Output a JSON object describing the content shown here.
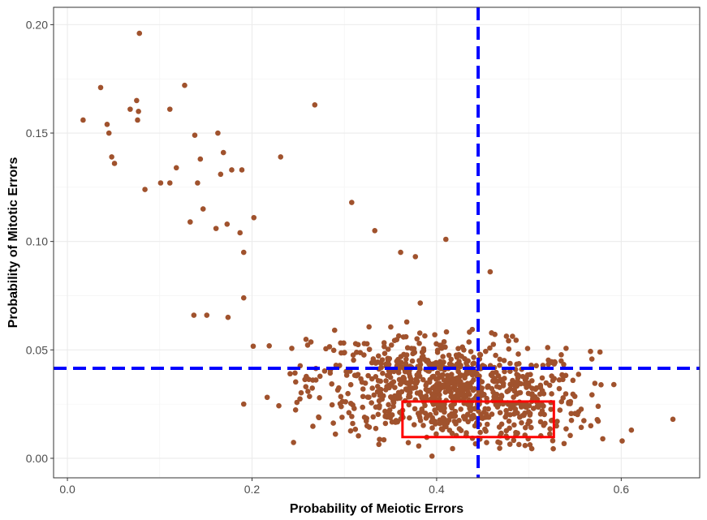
{
  "chart_data": {
    "type": "scatter",
    "title": "",
    "xlabel": "Probability of Meiotic Errors",
    "ylabel": "Probability of Mitotic Errors",
    "xlim": [
      -0.015,
      0.685
    ],
    "ylim": [
      -0.009,
      0.208
    ],
    "x_ticks": [
      0.0,
      0.2,
      0.4,
      0.6
    ],
    "x_tick_labels": [
      "0.0",
      "0.2",
      "0.4",
      "0.6"
    ],
    "y_ticks": [
      0.0,
      0.05,
      0.1,
      0.15,
      0.2
    ],
    "y_tick_labels": [
      "0.00",
      "0.05",
      "0.10",
      "0.15",
      "0.20"
    ],
    "grid": true,
    "point_color": "#a0522d",
    "reference_lines": {
      "color": "#0000ff",
      "style": "dashed",
      "vertical_x": 0.445,
      "horizontal_y": 0.0415
    },
    "highlight_box": {
      "color": "#ff0000",
      "x_range": [
        0.363,
        0.527
      ],
      "y_range": [
        0.0098,
        0.0262
      ]
    },
    "outlier_points": [
      {
        "x": 0.017,
        "y": 0.156
      },
      {
        "x": 0.036,
        "y": 0.171
      },
      {
        "x": 0.043,
        "y": 0.154
      },
      {
        "x": 0.045,
        "y": 0.15
      },
      {
        "x": 0.048,
        "y": 0.139
      },
      {
        "x": 0.051,
        "y": 0.136
      },
      {
        "x": 0.068,
        "y": 0.161
      },
      {
        "x": 0.075,
        "y": 0.165
      },
      {
        "x": 0.078,
        "y": 0.196
      },
      {
        "x": 0.077,
        "y": 0.16
      },
      {
        "x": 0.076,
        "y": 0.156
      },
      {
        "x": 0.084,
        "y": 0.124
      },
      {
        "x": 0.101,
        "y": 0.127
      },
      {
        "x": 0.111,
        "y": 0.127
      },
      {
        "x": 0.111,
        "y": 0.161
      },
      {
        "x": 0.118,
        "y": 0.134
      },
      {
        "x": 0.127,
        "y": 0.172
      },
      {
        "x": 0.133,
        "y": 0.109
      },
      {
        "x": 0.138,
        "y": 0.149
      },
      {
        "x": 0.141,
        "y": 0.127
      },
      {
        "x": 0.144,
        "y": 0.138
      },
      {
        "x": 0.147,
        "y": 0.115
      },
      {
        "x": 0.137,
        "y": 0.066
      },
      {
        "x": 0.151,
        "y": 0.066
      },
      {
        "x": 0.161,
        "y": 0.106
      },
      {
        "x": 0.163,
        "y": 0.15
      },
      {
        "x": 0.166,
        "y": 0.131
      },
      {
        "x": 0.169,
        "y": 0.141
      },
      {
        "x": 0.173,
        "y": 0.108
      },
      {
        "x": 0.174,
        "y": 0.065
      },
      {
        "x": 0.178,
        "y": 0.133
      },
      {
        "x": 0.187,
        "y": 0.104
      },
      {
        "x": 0.189,
        "y": 0.133
      },
      {
        "x": 0.191,
        "y": 0.095
      },
      {
        "x": 0.191,
        "y": 0.074
      },
      {
        "x": 0.191,
        "y": 0.025
      },
      {
        "x": 0.202,
        "y": 0.111
      },
      {
        "x": 0.231,
        "y": 0.139
      },
      {
        "x": 0.268,
        "y": 0.163
      },
      {
        "x": 0.308,
        "y": 0.118
      },
      {
        "x": 0.333,
        "y": 0.105
      },
      {
        "x": 0.361,
        "y": 0.095
      },
      {
        "x": 0.377,
        "y": 0.093
      },
      {
        "x": 0.41,
        "y": 0.101
      },
      {
        "x": 0.458,
        "y": 0.086
      },
      {
        "x": 0.656,
        "y": 0.018
      },
      {
        "x": 0.611,
        "y": 0.013
      },
      {
        "x": 0.601,
        "y": 0.008
      },
      {
        "x": 0.592,
        "y": 0.034
      },
      {
        "x": 0.577,
        "y": 0.049
      },
      {
        "x": 0.575,
        "y": 0.024
      },
      {
        "x": 0.567,
        "y": 0.015
      },
      {
        "x": 0.58,
        "y": 0.009
      },
      {
        "x": 0.395,
        "y": 0.001
      }
    ],
    "cloud_points": {
      "count": 900,
      "x_mean": 0.415,
      "x_sd": 0.075,
      "y_mean": 0.031,
      "y_sd": 0.012,
      "x_range": [
        0.2,
        0.58
      ],
      "y_range": [
        0.004,
        0.086
      ]
    }
  }
}
